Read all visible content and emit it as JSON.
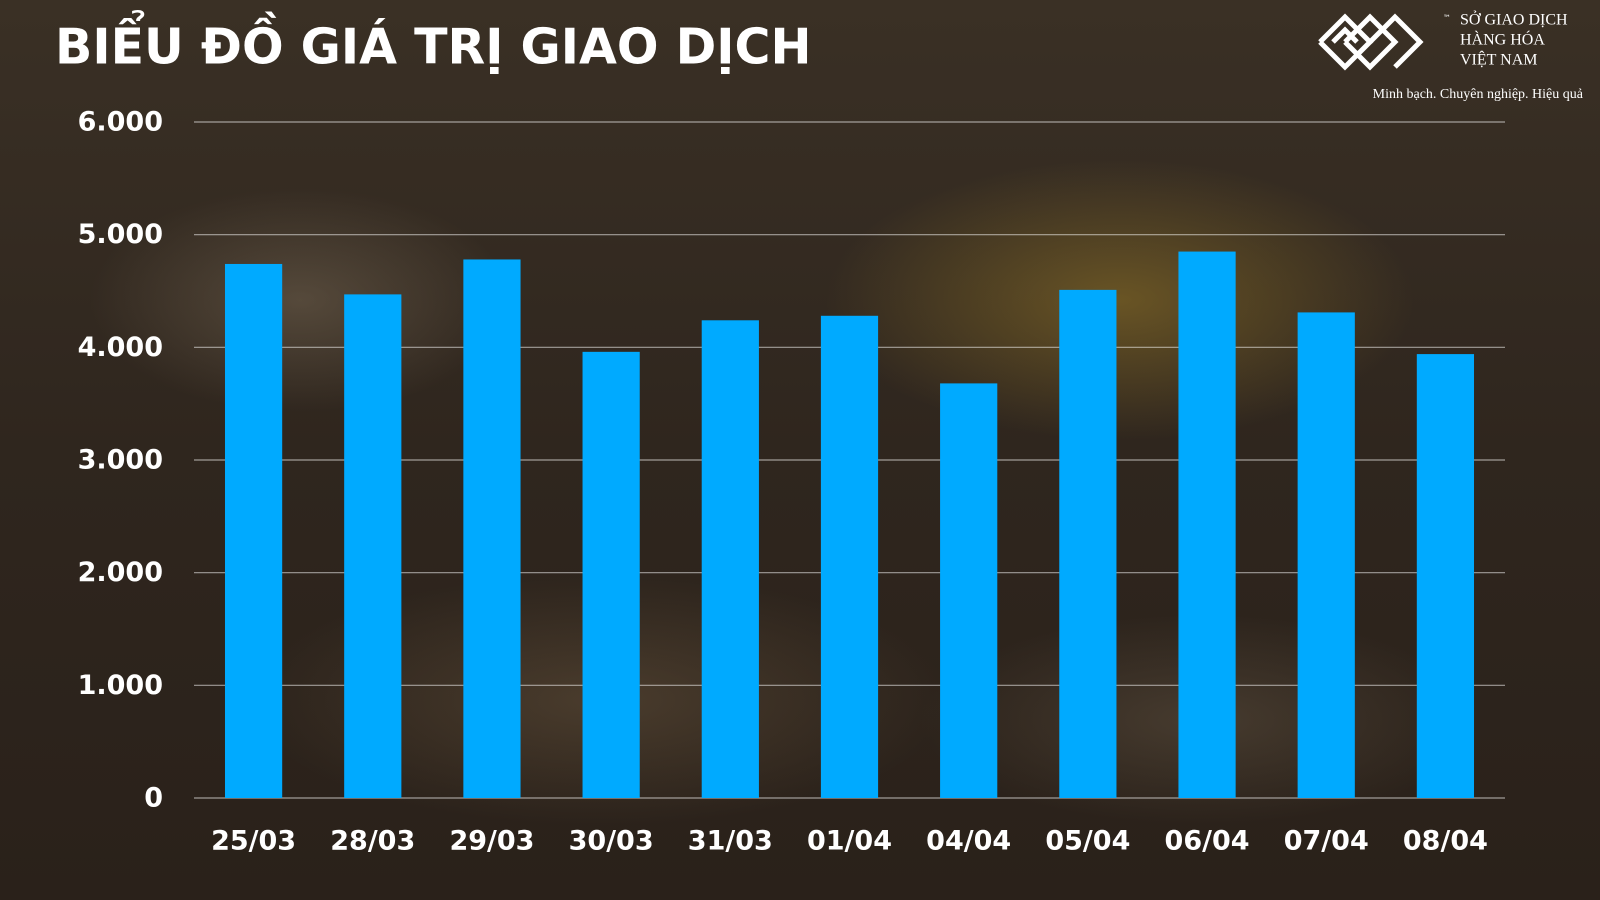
{
  "chart_data": {
    "type": "bar",
    "title": "BIỂU ĐỒ GIÁ TRỊ GIAO DỊCH",
    "categories": [
      "25/03",
      "28/03",
      "29/03",
      "30/03",
      "31/03",
      "01/04",
      "04/04",
      "05/04",
      "06/04",
      "07/04",
      "08/04"
    ],
    "values": [
      4740,
      4470,
      4780,
      3960,
      4240,
      4280,
      3680,
      4510,
      4850,
      4310,
      3940
    ],
    "color": "#00aaff",
    "ylim": [
      0,
      6000
    ],
    "yticks": [
      0,
      {
        "value": 1000,
        "label": "1.000"
      },
      {
        "value": 2000,
        "label": "2.000"
      },
      {
        "value": 3000,
        "label": "3.000"
      },
      {
        "value": 4000,
        "label": "4.000"
      },
      {
        "value": 5000,
        "label": "5.000"
      },
      {
        "value": 6000,
        "label": "6.000"
      }
    ],
    "grid": true
  },
  "logo": {
    "lines": [
      "SỞ GIAO DỊCH",
      "HÀNG HÓA",
      "VIỆT NAM"
    ],
    "trademark": "™",
    "tagline": "Minh bạch. Chuyên nghiệp. Hiệu quả"
  }
}
